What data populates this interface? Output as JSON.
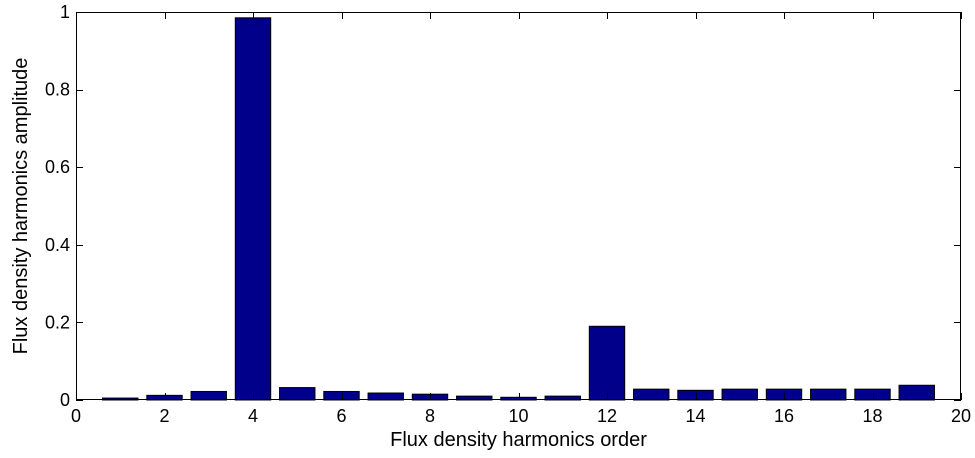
{
  "chart_data": {
    "type": "bar",
    "x": [
      1,
      2,
      3,
      4,
      5,
      6,
      7,
      8,
      9,
      10,
      11,
      12,
      13,
      14,
      15,
      16,
      17,
      18,
      19
    ],
    "values": [
      0.005,
      0.012,
      0.022,
      0.985,
      0.032,
      0.022,
      0.018,
      0.015,
      0.01,
      0.007,
      0.01,
      0.19,
      0.028,
      0.025,
      0.028,
      0.028,
      0.028,
      0.028,
      0.038
    ],
    "xlabel": "Flux density harmonics order",
    "ylabel": "Flux density harmonics amplitude",
    "xlim": [
      0,
      20
    ],
    "ylim": [
      0,
      1
    ],
    "xticks": [
      "0",
      "2",
      "4",
      "6",
      "8",
      "10",
      "12",
      "14",
      "16",
      "18",
      "20"
    ],
    "yticks": [
      "0",
      "0.2",
      "0.4",
      "0.6",
      "0.8",
      "1"
    ],
    "xtick_values": [
      0,
      2,
      4,
      6,
      8,
      10,
      12,
      14,
      16,
      18,
      20
    ],
    "ytick_values": [
      0,
      0.2,
      0.4,
      0.6,
      0.8,
      1
    ],
    "bar_width": 0.8,
    "bar_color": "#00008B",
    "grid": false,
    "legend": "none"
  }
}
